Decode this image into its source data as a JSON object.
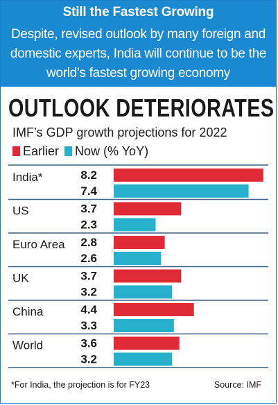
{
  "banner": {
    "title": "Still the Fastest Growing",
    "body": "Despite, revised outlook by many foreign and domestic experts, India will continue to be the world’s fastest growing economy"
  },
  "headline": "OUTLOOK DETERIORATES",
  "subtitle": "IMF’s GDP growth projections for 2022",
  "legend": {
    "earlier": "Earlier",
    "now": "Now (% YoY)"
  },
  "footer": {
    "note": "*For India, the projection is for FY23",
    "source": "Source: IMF"
  },
  "colors": {
    "banner": "#1b89d2",
    "earlier": "#e02a35",
    "now": "#27b0cc",
    "divider": "#3f5f88"
  },
  "chart_data": {
    "type": "bar",
    "orientation": "horizontal",
    "title": "IMF’s GDP growth projections for 2022",
    "categories": [
      "India*",
      "US",
      "Euro Area",
      "UK",
      "China",
      "World"
    ],
    "series": [
      {
        "name": "Earlier",
        "values": [
          8.2,
          3.7,
          2.8,
          3.7,
          4.4,
          3.6
        ]
      },
      {
        "name": "Now (% YoY)",
        "values": [
          7.4,
          2.3,
          2.6,
          3.2,
          3.3,
          3.2
        ]
      }
    ],
    "value_labels": [
      [
        "8.2",
        "3.7",
        "2.8",
        "3.7",
        "4.4",
        "3.6"
      ],
      [
        "7.4",
        "2.3",
        "2.6",
        "3.2",
        "3.3",
        "3.2"
      ]
    ],
    "grid": false,
    "legend_position": "top-left"
  }
}
